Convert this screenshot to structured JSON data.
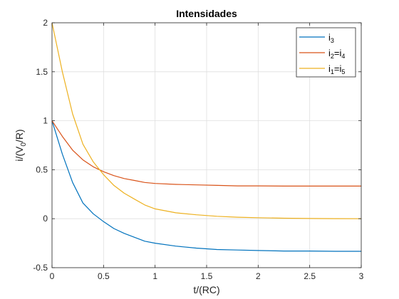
{
  "chart_data": {
    "type": "line",
    "title": "Intensidades",
    "xlabel": {
      "base": "t/(RC)"
    },
    "ylabel": {
      "pre": "i/(V",
      "sub": "0",
      "post": "/R)"
    },
    "xlim": [
      0,
      3
    ],
    "ylim": [
      -0.5,
      2
    ],
    "grid": true,
    "legend_position": "top-right",
    "x_ticks": [
      0,
      0.5,
      1,
      1.5,
      2,
      2.5,
      3
    ],
    "x_tick_labels": [
      "0",
      "0.5",
      "1",
      "1.5",
      "2",
      "2.5",
      "3"
    ],
    "y_ticks": [
      -0.5,
      0,
      0.5,
      1,
      1.5,
      2
    ],
    "y_tick_labels": [
      "-0.5",
      "0",
      "0.5",
      "1",
      "1.5",
      "2"
    ],
    "x": [
      0,
      0.1,
      0.2,
      0.3,
      0.4,
      0.5,
      0.6,
      0.7,
      0.8,
      0.9,
      1.0,
      1.2,
      1.4,
      1.6,
      1.8,
      2.0,
      2.25,
      2.5,
      2.75,
      3.0
    ],
    "series": [
      {
        "legend": {
          "base": "i",
          "sub1": "3",
          "mid": "",
          "sub2": ""
        },
        "color": "#0072BD",
        "values": [
          1.0,
          0.66,
          0.37,
          0.16,
          0.05,
          -0.03,
          -0.1,
          -0.15,
          -0.19,
          -0.23,
          -0.25,
          -0.28,
          -0.3,
          -0.315,
          -0.32,
          -0.325,
          -0.33,
          -0.33,
          -0.333,
          -0.333
        ]
      },
      {
        "legend": {
          "base": "i",
          "sub1": "2",
          "mid": "=i",
          "sub2": "4"
        },
        "color": "#D95319",
        "values": [
          1.0,
          0.84,
          0.7,
          0.6,
          0.53,
          0.48,
          0.44,
          0.41,
          0.39,
          0.37,
          0.36,
          0.35,
          0.345,
          0.34,
          0.335,
          0.335,
          0.333,
          0.333,
          0.333,
          0.333
        ]
      },
      {
        "legend": {
          "base": "i",
          "sub1": "1",
          "mid": "=i",
          "sub2": "5"
        },
        "color": "#EDB120",
        "values": [
          2.0,
          1.5,
          1.07,
          0.76,
          0.58,
          0.45,
          0.34,
          0.26,
          0.2,
          0.14,
          0.1,
          0.06,
          0.04,
          0.025,
          0.015,
          0.01,
          0.005,
          0.002,
          0.001,
          0.0
        ]
      }
    ]
  }
}
